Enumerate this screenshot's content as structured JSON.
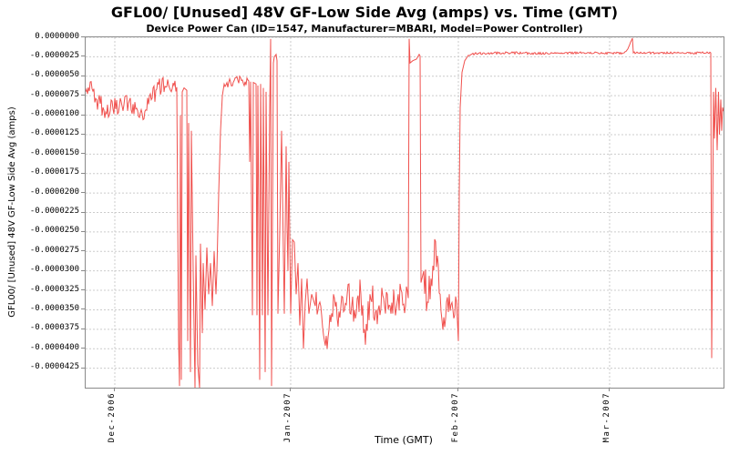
{
  "chart": {
    "title": "GFL00/ [Unused] 48V GF-Low Side Avg (amps) vs. Time (GMT)",
    "subtitle": "Device Power Can (ID=1547, Manufacturer=MBARI, Model=Power Controller)",
    "x_axis_label": "Time (GMT)",
    "y_axis_label": "GFL00/ [Unused] 48V GF-Low Side Avg (amps)"
  },
  "chart_data": {
    "type": "line",
    "title": "GFL00/ [Unused] 48V GF-Low Side Avg (amps) vs. Time (GMT)",
    "subtitle": "Device Power Can (ID=1547, Manufacturer=MBARI, Model=Power Controller)",
    "xlabel": "Time (GMT)",
    "ylabel": "GFL00/ [Unused] 48V GF-Low Side Avg (amps)",
    "legend": false,
    "grid": true,
    "grid_color": "#cccccc",
    "plot_border_color": "#8a8a8a",
    "ylim": [
      -4.5e-05,
      0.0
    ],
    "x_range_label": "late Nov-2006 to late Mar-2007",
    "x_ticks": [
      {
        "label": "Dec-2006",
        "pos": 0.0457
      },
      {
        "label": "Jan-2007",
        "pos": 0.3214
      },
      {
        "label": "Feb-2007",
        "pos": 0.5843
      },
      {
        "label": "Mar-2007",
        "pos": 0.8214
      }
    ],
    "y_ticks": [
      {
        "label": "0.0000000",
        "value": 0.0
      },
      {
        "label": "-0.0000025",
        "value": -2.5e-06
      },
      {
        "label": "-0.0000050",
        "value": -5e-06
      },
      {
        "label": "-0.0000075",
        "value": -7.5e-06
      },
      {
        "label": "-0.0000100",
        "value": -1e-05
      },
      {
        "label": "-0.0000125",
        "value": -1.25e-05
      },
      {
        "label": "-0.0000150",
        "value": -1.5e-05
      },
      {
        "label": "-0.0000175",
        "value": -1.75e-05
      },
      {
        "label": "-0.0000200",
        "value": -2e-05
      },
      {
        "label": "-0.0000225",
        "value": -2.25e-05
      },
      {
        "label": "-0.0000250",
        "value": -2.5e-05
      },
      {
        "label": "-0.0000275",
        "value": -2.75e-05
      },
      {
        "label": "-0.0000300",
        "value": -3e-05
      },
      {
        "label": "-0.0000325",
        "value": -3.25e-05
      },
      {
        "label": "-0.0000350",
        "value": -3.5e-05
      },
      {
        "label": "-0.0000375",
        "value": -3.75e-05
      },
      {
        "label": "-0.0000400",
        "value": -4e-05
      },
      {
        "label": "-0.0000425",
        "value": -4.25e-05
      }
    ],
    "series": [
      {
        "name": "48V GF-Low Side Avg",
        "unit": "amps",
        "color": "#f0514e",
        "value_scale": 1e-07,
        "anchors": [
          [
            0.0,
            -70
          ],
          [
            0.01,
            -66
          ],
          [
            0.0171,
            -80
          ],
          [
            0.0271,
            -90
          ],
          [
            0.0386,
            -94
          ],
          [
            0.0529,
            -88
          ],
          [
            0.0671,
            -85
          ],
          [
            0.0786,
            -92
          ],
          [
            0.0886,
            -98
          ],
          [
            0.0986,
            -86
          ],
          [
            0.11,
            -68
          ],
          [
            0.1243,
            -63
          ],
          [
            0.1386,
            -62
          ],
          [
            0.1429,
            -64
          ],
          [
            0.1457,
            -390
          ],
          [
            0.1471,
            -448
          ],
          [
            0.1486,
            -100
          ],
          [
            0.15,
            -440
          ],
          [
            0.1514,
            -70
          ],
          [
            0.1543,
            -65
          ],
          [
            0.1586,
            -68
          ],
          [
            0.16,
            -390
          ],
          [
            0.1614,
            -110
          ],
          [
            0.1643,
            -430
          ],
          [
            0.1657,
            -120
          ],
          [
            0.1686,
            -300
          ],
          [
            0.1714,
            -451
          ],
          [
            0.1729,
            -280
          ],
          [
            0.1757,
            -420
          ],
          [
            0.1786,
            -451
          ],
          [
            0.18,
            -265
          ],
          [
            0.1829,
            -380
          ],
          [
            0.1843,
            -290
          ],
          [
            0.1871,
            -350
          ],
          [
            0.19,
            -270
          ],
          [
            0.1929,
            -330
          ],
          [
            0.1957,
            -290
          ],
          [
            0.1986,
            -345
          ],
          [
            0.2014,
            -275
          ],
          [
            0.2043,
            -330
          ],
          [
            0.2057,
            -300
          ],
          [
            0.2086,
            -200
          ],
          [
            0.2114,
            -120
          ],
          [
            0.2143,
            -75
          ],
          [
            0.2171,
            -60
          ],
          [
            0.2243,
            -58
          ],
          [
            0.2386,
            -55
          ],
          [
            0.25,
            -57
          ],
          [
            0.2557,
            -56
          ],
          [
            0.2571,
            -160
          ],
          [
            0.2586,
            -57
          ],
          [
            0.2614,
            -357
          ],
          [
            0.2629,
            -58
          ],
          [
            0.2671,
            -60
          ],
          [
            0.2686,
            -357
          ],
          [
            0.27,
            -62
          ],
          [
            0.2729,
            -440
          ],
          [
            0.2743,
            -60
          ],
          [
            0.2771,
            -357
          ],
          [
            0.2786,
            -65
          ],
          [
            0.2814,
            -430
          ],
          [
            0.2829,
            -70
          ],
          [
            0.2857,
            -357
          ],
          [
            0.2886,
            -90
          ],
          [
            0.29,
            -2
          ],
          [
            0.2914,
            -448
          ],
          [
            0.2943,
            -33
          ],
          [
            0.2957,
            -25
          ],
          [
            0.2986,
            -22
          ],
          [
            0.3,
            -30
          ],
          [
            0.3014,
            -355
          ],
          [
            0.3043,
            -250
          ],
          [
            0.3071,
            -120
          ],
          [
            0.3086,
            -200
          ],
          [
            0.3114,
            -355
          ],
          [
            0.3143,
            -140
          ],
          [
            0.3157,
            -240
          ],
          [
            0.3171,
            -300
          ],
          [
            0.3186,
            -160
          ],
          [
            0.3214,
            -355
          ],
          [
            0.3243,
            -260
          ],
          [
            0.3271,
            -263
          ],
          [
            0.33,
            -330
          ],
          [
            0.3329,
            -290
          ],
          [
            0.3357,
            -370
          ],
          [
            0.3386,
            -310
          ],
          [
            0.3414,
            -400
          ],
          [
            0.3443,
            -340
          ],
          [
            0.3471,
            -310
          ],
          [
            0.35,
            -355
          ],
          [
            0.3543,
            -330
          ],
          [
            0.36,
            -345
          ],
          [
            0.3671,
            -340
          ],
          [
            0.3786,
            -400
          ],
          [
            0.3886,
            -330
          ],
          [
            0.3986,
            -360
          ],
          [
            0.41,
            -330
          ],
          [
            0.4214,
            -350
          ],
          [
            0.4314,
            -330
          ],
          [
            0.4386,
            -395
          ],
          [
            0.4457,
            -330
          ],
          [
            0.4557,
            -350
          ],
          [
            0.4671,
            -335
          ],
          [
            0.4786,
            -355
          ],
          [
            0.49,
            -330
          ],
          [
            0.5014,
            -345
          ],
          [
            0.5057,
            -335
          ],
          [
            0.5071,
            -2
          ],
          [
            0.5086,
            -33
          ],
          [
            0.5129,
            -30
          ],
          [
            0.5186,
            -28
          ],
          [
            0.5229,
            -22
          ],
          [
            0.5243,
            -24
          ],
          [
            0.5257,
            -315
          ],
          [
            0.53,
            -300
          ],
          [
            0.5357,
            -340
          ],
          [
            0.5414,
            -310
          ],
          [
            0.5486,
            -262
          ],
          [
            0.5557,
            -330
          ],
          [
            0.5629,
            -372
          ],
          [
            0.57,
            -330
          ],
          [
            0.5757,
            -350
          ],
          [
            0.5814,
            -340
          ],
          [
            0.5843,
            -390
          ],
          [
            0.5857,
            -200
          ],
          [
            0.5871,
            -90
          ],
          [
            0.59,
            -45
          ],
          [
            0.5943,
            -30
          ],
          [
            0.6,
            -23
          ],
          [
            0.61,
            -21
          ],
          [
            0.6671,
            -20
          ],
          [
            0.7243,
            -21
          ],
          [
            0.7814,
            -20
          ],
          [
            0.8443,
            -20
          ],
          [
            0.8514,
            -12
          ],
          [
            0.8571,
            -1
          ],
          [
            0.8586,
            -20
          ],
          [
            0.8671,
            -20
          ],
          [
            0.9243,
            -20
          ],
          [
            0.98,
            -20
          ],
          [
            0.9814,
            -412
          ],
          [
            0.9843,
            -70
          ],
          [
            0.9857,
            -130
          ],
          [
            0.9879,
            -65
          ],
          [
            0.99,
            -145
          ],
          [
            0.9921,
            -70
          ],
          [
            0.9936,
            -125
          ],
          [
            0.9957,
            -80
          ],
          [
            0.9971,
            -120
          ],
          [
            0.9986,
            -90
          ],
          [
            1.0,
            -95
          ]
        ],
        "noise_zones": [
          {
            "x0": 0.0,
            "x1": 0.1429,
            "amp": 13
          },
          {
            "x0": 0.1929,
            "x1": 0.2057,
            "amp": 22
          },
          {
            "x0": 0.2171,
            "x1": 0.255,
            "amp": 6
          },
          {
            "x0": 0.36,
            "x1": 0.504,
            "amp": 22
          },
          {
            "x0": 0.529,
            "x1": 0.582,
            "amp": 22
          },
          {
            "x0": 0.605,
            "x1": 0.979,
            "amp": 1.5
          }
        ]
      }
    ]
  }
}
